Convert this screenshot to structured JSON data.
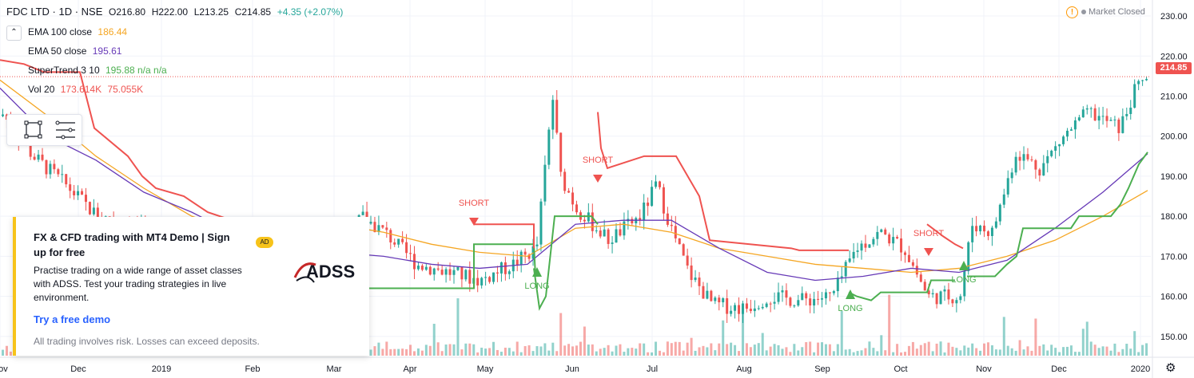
{
  "header": {
    "symbol": "FDC LTD · 1D · NSE",
    "open": "O216.80",
    "high": "H222.00",
    "low": "L213.25",
    "close": "C214.85",
    "change": "+4.35 (+2.07%)",
    "market_status": "Market Closed"
  },
  "indicators": [
    {
      "label": "EMA 100 close",
      "value": "186.44",
      "color": "#f5a623"
    },
    {
      "label": "EMA 50 close",
      "value": "195.61",
      "color": "#673ab7"
    },
    {
      "label": "SuperTrend 3 10",
      "value": "195.88 n/a n/a",
      "color": "#4caf50"
    },
    {
      "label": "Vol 20",
      "value": "173.614K",
      "value2": "75.055K",
      "color": "#ef5350"
    }
  ],
  "ad": {
    "title": "FX & CFD trading with MT4 Demo | Sign up for free",
    "badge": "AD",
    "body": "Practise trading on a wide range of asset classes with ADSS. Test your trading strategies in live environment.",
    "cta": "Try a free demo",
    "disclaimer": "All trading involves risk. Losses can exceed deposits.",
    "logo_text": "ADSS"
  },
  "price_tag": "214.85",
  "chart_data": {
    "type": "candlestick",
    "x_ticks": [
      "Nov",
      "Dec",
      "2019",
      "Feb",
      "Mar",
      "Apr",
      "May",
      "Jun",
      "Jul",
      "Aug",
      "Sep",
      "Oct",
      "Nov",
      "Dec",
      "2020"
    ],
    "y_ticks": [
      "150.00",
      "160.00",
      "170.00",
      "180.00",
      "190.00",
      "200.00",
      "210.00",
      "220.00",
      "230.00"
    ],
    "ylim": [
      142,
      232
    ],
    "last_price": 214.85,
    "series": [
      {
        "name": "EMA 100 close",
        "color": "#f5a623",
        "points": [
          [
            0,
            214
          ],
          [
            60,
            205
          ],
          [
            120,
            195
          ],
          [
            180,
            187
          ],
          [
            240,
            180
          ],
          [
            300,
            176
          ],
          [
            360,
            177
          ],
          [
            420,
            178
          ],
          [
            480,
            176
          ],
          [
            540,
            173
          ],
          [
            600,
            171
          ],
          [
            660,
            170
          ],
          [
            720,
            177
          ],
          [
            780,
            178
          ],
          [
            840,
            176
          ],
          [
            900,
            172
          ],
          [
            960,
            170
          ],
          [
            1020,
            168
          ],
          [
            1080,
            167
          ],
          [
            1140,
            166
          ],
          [
            1200,
            167
          ],
          [
            1260,
            170
          ],
          [
            1320,
            174
          ],
          [
            1380,
            180
          ],
          [
            1436,
            186.44
          ]
        ]
      },
      {
        "name": "EMA 50 close",
        "color": "#673ab7",
        "points": [
          [
            0,
            212
          ],
          [
            60,
            200
          ],
          [
            120,
            194
          ],
          [
            180,
            186
          ],
          [
            240,
            181
          ],
          [
            300,
            175
          ],
          [
            360,
            172
          ],
          [
            420,
            171
          ],
          [
            480,
            170
          ],
          [
            540,
            168
          ],
          [
            600,
            167
          ],
          [
            660,
            168
          ],
          [
            720,
            178
          ],
          [
            780,
            179
          ],
          [
            840,
            179
          ],
          [
            900,
            172
          ],
          [
            960,
            166
          ],
          [
            1020,
            164
          ],
          [
            1080,
            165
          ],
          [
            1140,
            167
          ],
          [
            1200,
            166
          ],
          [
            1260,
            169
          ],
          [
            1320,
            177
          ],
          [
            1380,
            186
          ],
          [
            1436,
            195.61
          ]
        ]
      }
    ],
    "supertrend": [
      {
        "dir": "down",
        "points": [
          [
            0,
            219
          ],
          [
            30,
            218
          ],
          [
            55,
            216
          ],
          [
            100,
            216
          ],
          [
            118,
            202
          ],
          [
            160,
            195
          ],
          [
            178,
            190
          ],
          [
            195,
            187
          ],
          [
            230,
            185
          ],
          [
            260,
            181
          ],
          [
            290,
            179
          ],
          [
            440,
            177.5
          ]
        ]
      },
      {
        "dir": "up",
        "points": [
          [
            440,
            162
          ],
          [
            593,
            162
          ],
          [
            593,
            173
          ],
          [
            668,
            173
          ],
          [
            670,
            165
          ]
        ]
      },
      {
        "dir": "down",
        "points": [
          [
            593,
            178
          ],
          [
            668,
            178
          ],
          [
            668,
            172
          ]
        ]
      },
      {
        "dir": "up",
        "points": [
          [
            668,
            167
          ],
          [
            675,
            157
          ],
          [
            683,
            160
          ],
          [
            694,
            180
          ],
          [
            740,
            180
          ],
          [
            748,
            178
          ]
        ]
      },
      {
        "dir": "down",
        "points": [
          [
            748,
            206
          ],
          [
            752,
            197
          ],
          [
            760,
            192
          ],
          [
            806,
            195
          ],
          [
            846,
            195
          ],
          [
            875,
            185
          ],
          [
            888,
            174
          ],
          [
            990,
            172
          ],
          [
            1000,
            171.5
          ],
          [
            1062,
            171.5
          ]
        ]
      },
      {
        "dir": "up",
        "points": [
          [
            1062,
            161
          ],
          [
            1072,
            160
          ],
          [
            1090,
            159
          ],
          [
            1102,
            161
          ],
          [
            1160,
            161
          ],
          [
            1165,
            164
          ],
          [
            1195,
            164
          ]
        ]
      },
      {
        "dir": "down",
        "points": [
          [
            1160,
            178
          ],
          [
            1180,
            175
          ],
          [
            1195,
            173
          ],
          [
            1205,
            172
          ]
        ]
      },
      {
        "dir": "up",
        "points": [
          [
            1210,
            165
          ],
          [
            1245,
            165
          ],
          [
            1260,
            168
          ],
          [
            1272,
            170
          ],
          [
            1280,
            177
          ],
          [
            1340,
            177
          ],
          [
            1350,
            180
          ],
          [
            1390,
            180
          ],
          [
            1402,
            183
          ],
          [
            1412,
            187
          ],
          [
            1425,
            193
          ],
          [
            1436,
            196
          ]
        ]
      }
    ],
    "signals": [
      {
        "label": "SHORT",
        "x": 593,
        "type": "short"
      },
      {
        "label": "LONG",
        "x": 672,
        "type": "long"
      },
      {
        "label": "SHORT",
        "x": 748,
        "type": "short"
      },
      {
        "label": "LONG",
        "x": 1064,
        "type": "long"
      },
      {
        "label": "SHORT",
        "x": 1162,
        "type": "short"
      },
      {
        "label": "LONG",
        "x": 1206,
        "type": "long"
      }
    ]
  }
}
